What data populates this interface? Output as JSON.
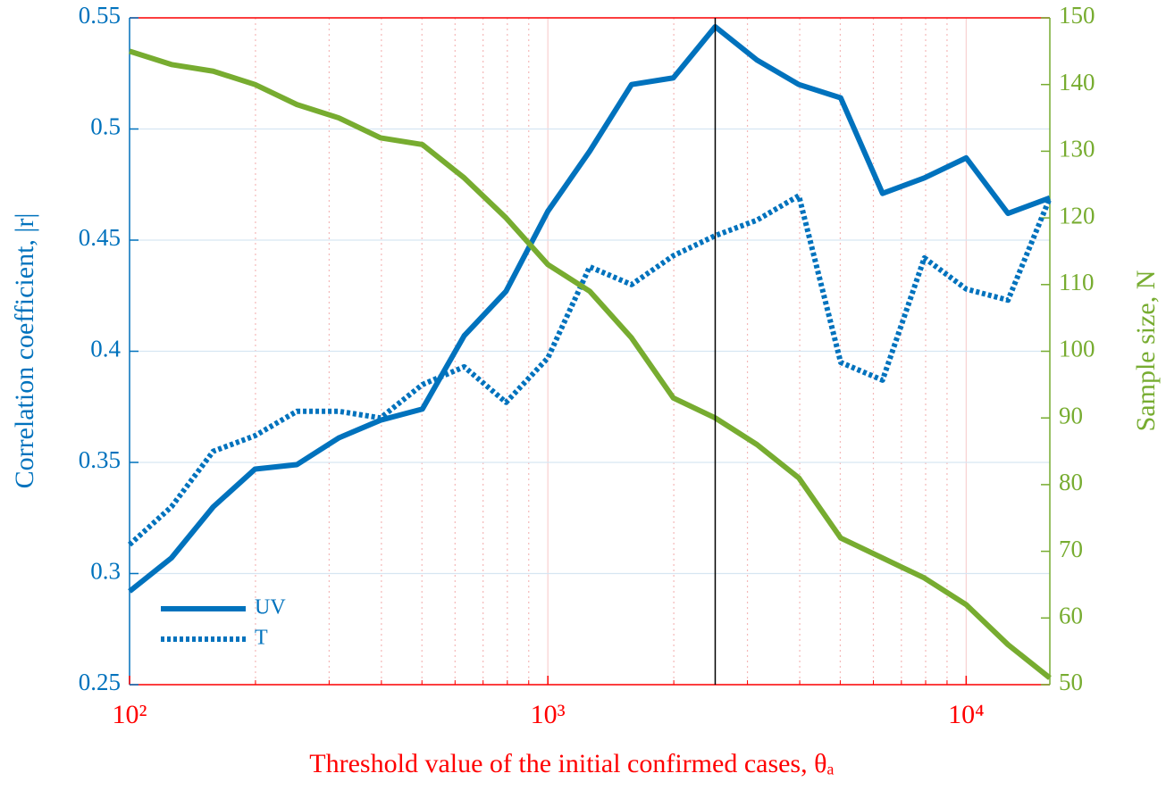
{
  "chart_data": {
    "type": "line",
    "xlabel": "Threshold value of the initial confirmed cases, θₐ",
    "ylabel": "Correlation coefficient, |r|",
    "y2label": "Sample size, N",
    "x": [
      100,
      125.9,
      158.5,
      199.5,
      251.2,
      316.2,
      398.1,
      501.2,
      631,
      794.3,
      1000,
      1259,
      1585,
      1995,
      2512,
      3162,
      3981,
      5012,
      6310,
      7943,
      10000,
      12589,
      15849
    ],
    "series": [
      {
        "name": "UV",
        "color": "#0072bd",
        "dash": "solid",
        "values": [
          0.292,
          0.307,
          0.33,
          0.347,
          0.349,
          0.361,
          0.369,
          0.374,
          0.407,
          0.427,
          0.463,
          0.49,
          0.52,
          0.523,
          0.546,
          0.531,
          0.52,
          0.514,
          0.471,
          0.478,
          0.487,
          0.462,
          0.469
        ]
      },
      {
        "name": "T",
        "color": "#0072bd",
        "dash": "dotted",
        "values": [
          0.313,
          0.33,
          0.355,
          0.362,
          0.373,
          0.373,
          0.37,
          0.385,
          0.393,
          0.377,
          0.397,
          0.438,
          0.43,
          0.443,
          0.452,
          0.459,
          0.47,
          0.395,
          0.387,
          0.442,
          0.428,
          0.423,
          0.469
        ]
      },
      {
        "color": "#77ac30",
        "dash": "solid",
        "axis": "y2",
        "values": [
          145,
          143,
          142,
          140,
          137,
          135,
          132,
          131,
          126,
          120,
          113,
          109,
          102,
          93,
          90,
          86,
          81,
          72,
          69,
          66,
          62,
          56,
          51
        ]
      }
    ],
    "xscale": "log",
    "xlim": [
      100,
      15849
    ],
    "xticks": [
      {
        "value": 100,
        "label": "10²"
      },
      {
        "value": 1000,
        "label": "10³"
      },
      {
        "value": 10000,
        "label": "10⁴"
      }
    ],
    "xminorticks": [
      200,
      300,
      400,
      500,
      600,
      700,
      800,
      900,
      2000,
      3000,
      4000,
      5000,
      6000,
      7000,
      8000,
      9000
    ],
    "ylim": [
      0.25,
      0.55
    ],
    "yticks": [
      0.25,
      0.3,
      0.35,
      0.4,
      0.45,
      0.5,
      0.55
    ],
    "y2lim": [
      50,
      150
    ],
    "y2ticks": [
      50,
      60,
      70,
      80,
      90,
      100,
      110,
      120,
      130,
      140,
      150
    ],
    "vline": 2512,
    "grid": true,
    "legend": "lower left",
    "xaxis_color": "#ff0000",
    "yaxis_color": "#0072bd",
    "y2axis_color": "#77ac30"
  }
}
